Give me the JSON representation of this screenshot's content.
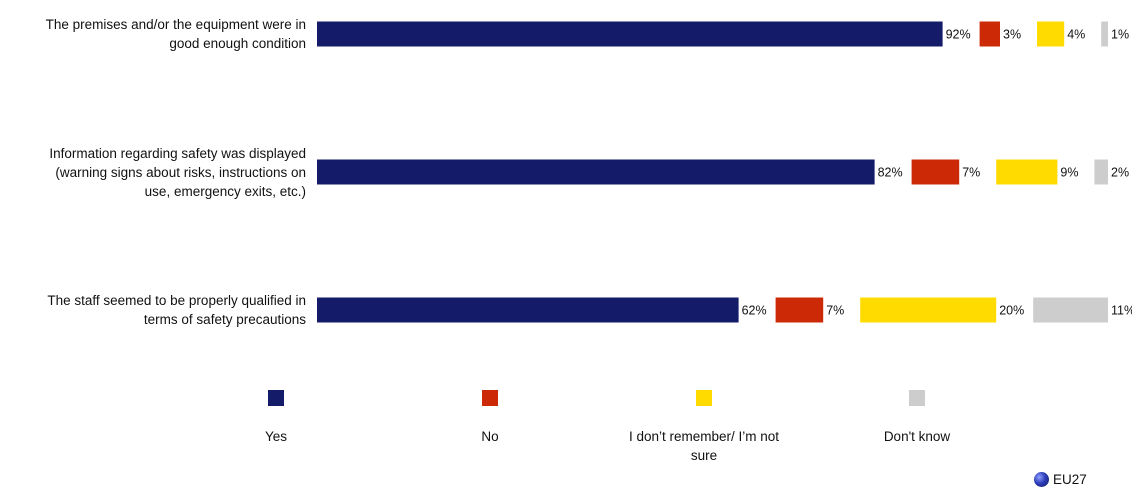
{
  "chart_data": {
    "type": "bar",
    "orientation": "horizontal",
    "stacked": true,
    "categories": [
      "The premises and/or the equipment were in good enough condition",
      "Information regarding safety was displayed (warning signs about risks, instructions on use, emergency exits, etc.)",
      "The staff seemed to be properly qualified in terms of safety precautions"
    ],
    "category_lines": [
      [
        "The premises and/or the equipment were in",
        "good enough condition"
      ],
      [
        "Information regarding safety was displayed",
        "(warning signs about risks, instructions on",
        "use, emergency exits, etc.)"
      ],
      [
        "The staff seemed to be properly qualified in",
        "terms of safety precautions"
      ]
    ],
    "series": [
      {
        "name": "Yes",
        "color": "#141c6a",
        "values": [
          92,
          82,
          62
        ]
      },
      {
        "name": "No",
        "color": "#cc2a07",
        "values": [
          3,
          7,
          7
        ]
      },
      {
        "name": "I don’t remember/ I’m not sure",
        "color": "#ffdb00",
        "values": [
          4,
          9,
          20
        ]
      },
      {
        "name": "Don't know",
        "color": "#cdcdcd",
        "values": [
          1,
          2,
          11
        ]
      }
    ],
    "legend_lines": [
      [
        "Yes"
      ],
      [
        "No"
      ],
      [
        "I don’t remember/ I’m not",
        "sure"
      ],
      [
        "Don't know"
      ]
    ],
    "value_suffix": "%",
    "legend_position": "bottom",
    "grid": false
  },
  "region": "EU27"
}
